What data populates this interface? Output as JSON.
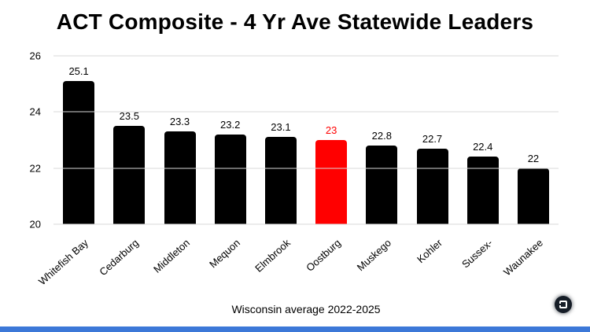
{
  "chart_data": {
    "type": "bar",
    "title": "ACT Composite - 4 Yr Ave Statewide Leaders",
    "caption": "Wisconsin average 2022-2025",
    "categories": [
      "Whitefish Bay",
      "Cedarburg",
      "Middleton",
      "Mequon",
      "Elmbrook",
      "Oostburg",
      "Muskego",
      "Kohler",
      "Sussex-",
      "Waunakee"
    ],
    "values": [
      25.1,
      23.5,
      23.3,
      23.2,
      23.1,
      23,
      22.8,
      22.7,
      22.4,
      22
    ],
    "value_labels": [
      "25.1",
      "23.5",
      "23.3",
      "23.2",
      "23.1",
      "23",
      "22.8",
      "22.7",
      "22.4",
      "22"
    ],
    "highlighted_category": "Oostburg",
    "bar_color": "#000000",
    "highlight_color": "#ff0000",
    "ylim": [
      20,
      26
    ],
    "yticks": [
      20,
      22,
      24,
      26
    ],
    "grid": true,
    "legend": false,
    "xlabel": "",
    "ylabel": ""
  },
  "colors": {
    "bar": "#000000",
    "highlight": "#ff0000",
    "gridline": "#d9d9d9",
    "footer_accent_bar": "#3c78d8",
    "watermark_badge": "#161d27"
  },
  "watermark": {
    "icon": "dark-circle-badge-icon"
  }
}
